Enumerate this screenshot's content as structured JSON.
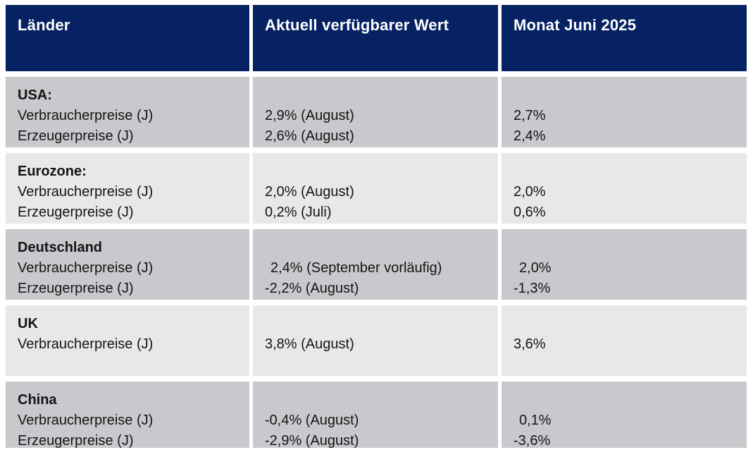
{
  "colors": {
    "header_bg": "#062263",
    "header_text": "#ffffff",
    "row_dark": "#c9c9cd",
    "row_light": "#e8e8e9",
    "body_text": "#141414",
    "page_bg": "#ffffff"
  },
  "table": {
    "headers": [
      "Länder",
      "Aktuell verfügbarer Wert",
      "Monat Juni 2025"
    ],
    "rows": [
      {
        "country": "USA:",
        "items": [
          {
            "label": "Verbraucherpreise (J)",
            "current": "2,9% (August)",
            "june": "2,7%"
          },
          {
            "label": "Erzeugerpreise (J)",
            "current": "2,6% (August)",
            "june": "2,4%"
          }
        ]
      },
      {
        "country": "Eurozone:",
        "items": [
          {
            "label": "Verbraucherpreise (J)",
            "current": "2,0% (August)",
            "june": "2,0%"
          },
          {
            "label": "Erzeugerpreise (J)",
            "current": "0,2% (Juli)",
            "june": "0,6%"
          }
        ]
      },
      {
        "country": "Deutschland",
        "items": [
          {
            "label": "Verbraucherpreise (J)",
            "current": "  2,4% (September vorläufig)",
            "june": "  2,0%"
          },
          {
            "label": "Erzeugerpreise (J)",
            "current": "-2,2% (August)",
            "june": "-1,3%"
          }
        ]
      },
      {
        "country": "UK",
        "items": [
          {
            "label": "Verbraucherpreise (J)",
            "current": "3,8% (August)",
            "june": "3,6%"
          }
        ]
      },
      {
        "country": "China",
        "items": [
          {
            "label": "Verbraucherpreise (J)",
            "current": "-0,4% (August)",
            "june": "  0,1%"
          },
          {
            "label": "Erzeugerpreise (J)",
            "current": "-2,9% (August)",
            "june": "-3,6%"
          }
        ]
      }
    ]
  }
}
